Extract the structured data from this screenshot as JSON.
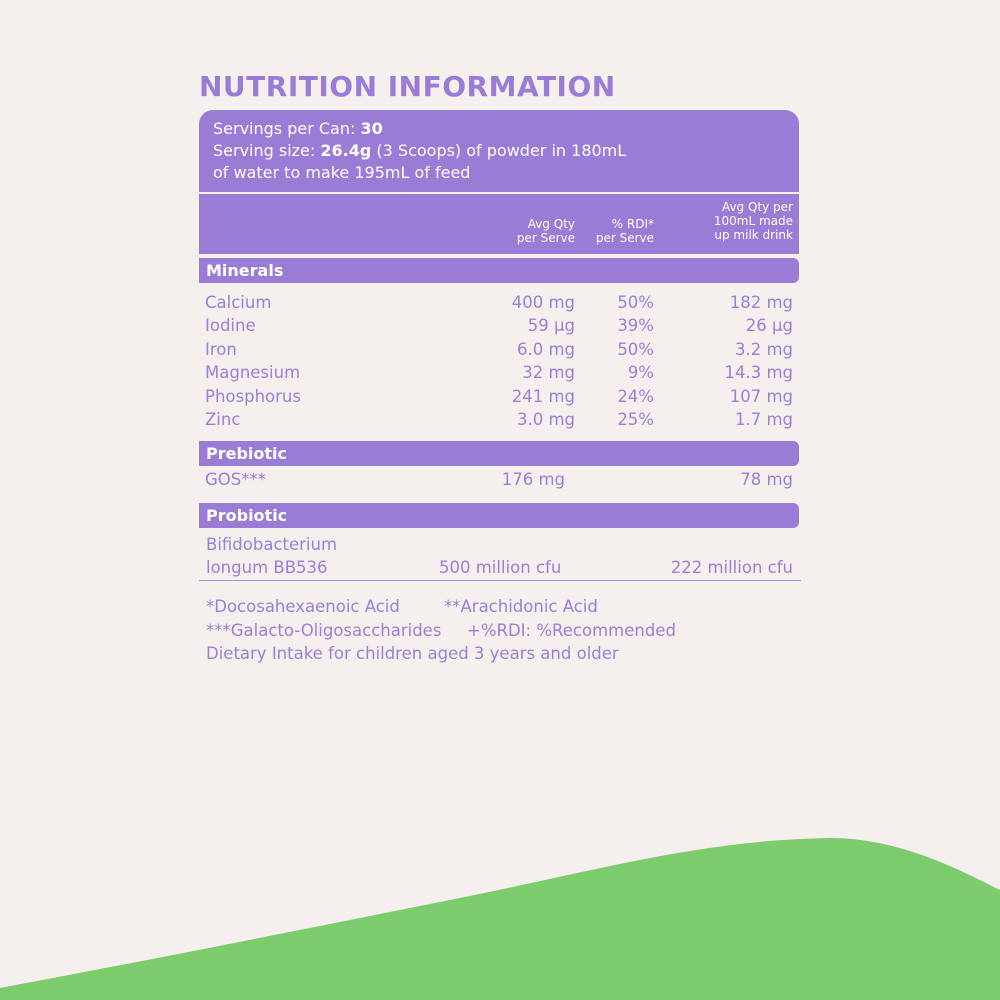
{
  "title": "NUTRITION INFORMATION",
  "serving": {
    "servings_label": "Servings per Can: ",
    "servings_value": "30",
    "size_label": "Serving size: ",
    "size_value": "26.4g",
    "size_rest": " (3 Scoops) of powder in 180mL",
    "size_line2": "of water to make 195mL of feed"
  },
  "columns": {
    "per_serve_l1": "Avg Qty",
    "per_serve_l2": "per Serve",
    "rdi_l1": "% RDI*",
    "rdi_l2": "per Serve",
    "per100_l1": "Avg Qty per",
    "per100_l2": "100mL made",
    "per100_l3": "up milk drink"
  },
  "minerals": {
    "label": "Minerals",
    "rows": [
      {
        "name": "Calcium",
        "per_serve": "400 mg",
        "rdi": "50%",
        "per100": "182 mg"
      },
      {
        "name": "Iodine",
        "per_serve": "59 µg",
        "rdi": "39%",
        "per100": "26 µg"
      },
      {
        "name": "Iron",
        "per_serve": "6.0 mg",
        "rdi": "50%",
        "per100": "3.2 mg"
      },
      {
        "name": "Magnesium",
        "per_serve": "32 mg",
        "rdi": "9%",
        "per100": "14.3 mg"
      },
      {
        "name": "Phosphorus",
        "per_serve": "241 mg",
        "rdi": "24%",
        "per100": "107 mg"
      },
      {
        "name": "Zinc",
        "per_serve": "3.0 mg",
        "rdi": "25%",
        "per100": "1.7 mg"
      }
    ]
  },
  "prebiotic": {
    "label": "Prebiotic",
    "name": "GOS***",
    "per_serve": "176 mg",
    "per100": "78 mg"
  },
  "probiotic": {
    "label": "Probiotic",
    "name_l1": "Bifidobacterium",
    "name_l2": "longum BB536",
    "per_serve": "500 million cfu",
    "per100": "222 million cfu"
  },
  "notes": {
    "n1": "*Docosahexaenoic Acid",
    "n2": "**Arachidonic Acid",
    "n3": "***Galacto-Oligosaccharides",
    "n4": "+%RDI: %Recommended",
    "n5": "Dietary Intake for children aged 3 years and older"
  },
  "colors": {
    "accent": "#9a7bd6",
    "background": "#f5f0ee",
    "wave": "#7ccb6c"
  }
}
